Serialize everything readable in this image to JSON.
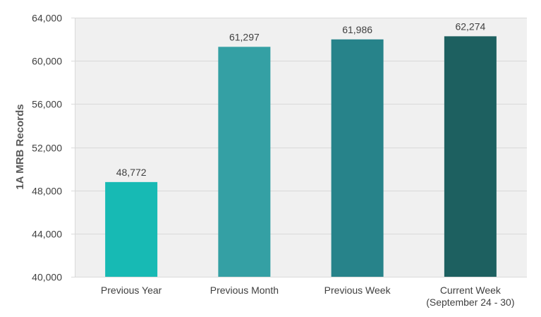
{
  "chart_data": {
    "type": "bar",
    "title": "",
    "xlabel": "",
    "ylabel": "1A MRB Records",
    "ylim": [
      40000,
      64000
    ],
    "yticks": [
      40000,
      44000,
      48000,
      52000,
      56000,
      60000,
      64000
    ],
    "ytick_labels": [
      "40,000",
      "44,000",
      "48,000",
      "52,000",
      "56,000",
      "60,000",
      "64,000"
    ],
    "grid": true,
    "categories": [
      [
        "Previous Year"
      ],
      [
        "Previous Month"
      ],
      [
        "Previous Week"
      ],
      [
        "Current Week",
        "(September 24 - 30)"
      ]
    ],
    "values": [
      48772,
      61297,
      61986,
      62274
    ],
    "data_labels": [
      "48,772",
      "61,297",
      "61,986",
      "62,274"
    ],
    "colors": [
      "#17bab4",
      "#34a0a4",
      "#27838a",
      "#1d6060"
    ],
    "plot_background": "#f0f0f0",
    "grid_color": "#d9d9d9"
  }
}
